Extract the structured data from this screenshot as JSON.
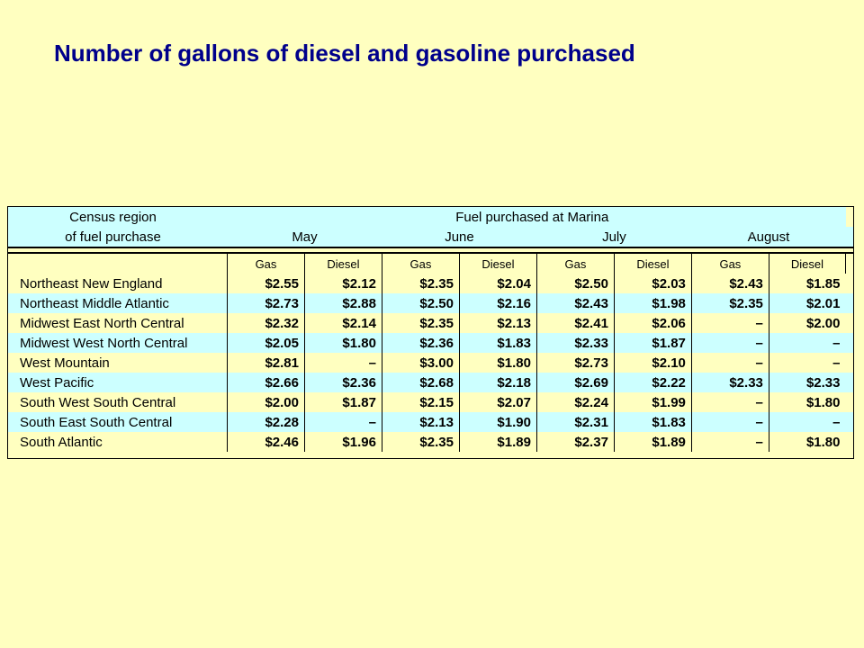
{
  "title": "Number of gallons of diesel and gasoline purchased",
  "header": {
    "region_line1": "Census region",
    "region_line2": "of fuel purchase",
    "group_label": "Fuel purchased at Marina",
    "months": [
      "May",
      "June",
      "July",
      "August"
    ],
    "fuel_labels": [
      "Gas",
      "Diesel",
      "Gas",
      "Diesel",
      "Gas",
      "Diesel",
      "Gas",
      "Diesel"
    ]
  },
  "rows": [
    {
      "region": "Northeast New England",
      "values": [
        "$2.55",
        "$2.12",
        "$2.35",
        "$2.04",
        "$2.50",
        "$2.03",
        "$2.43",
        "$1.85"
      ]
    },
    {
      "region": "Northeast Middle Atlantic",
      "values": [
        "$2.73",
        "$2.88",
        "$2.50",
        "$2.16",
        "$2.43",
        "$1.98",
        "$2.35",
        "$2.01"
      ]
    },
    {
      "region": "Midwest East North Central",
      "values": [
        "$2.32",
        "$2.14",
        "$2.35",
        "$2.13",
        "$2.41",
        "$2.06",
        "–",
        "$2.00"
      ]
    },
    {
      "region": "Midwest West North Central",
      "values": [
        "$2.05",
        "$1.80",
        "$2.36",
        "$1.83",
        "$2.33",
        "$1.87",
        "–",
        "–"
      ]
    },
    {
      "region": "West Mountain",
      "values": [
        "$2.81",
        "–",
        "$3.00",
        "$1.80",
        "$2.73",
        "$2.10",
        "–",
        "–"
      ]
    },
    {
      "region": "West Pacific",
      "values": [
        "$2.66",
        "$2.36",
        "$2.68",
        "$2.18",
        "$2.69",
        "$2.22",
        "$2.33",
        "$2.33"
      ]
    },
    {
      "region": "South West South Central",
      "values": [
        "$2.00",
        "$1.87",
        "$2.15",
        "$2.07",
        "$2.24",
        "$1.99",
        "–",
        "$1.80"
      ]
    },
    {
      "region": "South East South Central",
      "values": [
        "$2.28",
        "–",
        "$2.13",
        "$1.90",
        "$2.31",
        "$1.83",
        "–",
        "–"
      ]
    },
    {
      "region": "South Atlantic",
      "values": [
        "$2.46",
        "$1.96",
        "$2.35",
        "$1.89",
        "$2.37",
        "$1.89",
        "–",
        "$1.80"
      ]
    }
  ],
  "colors": {
    "background": "#ffffc0",
    "row_alt": "#ccffff",
    "title": "#00008b"
  }
}
